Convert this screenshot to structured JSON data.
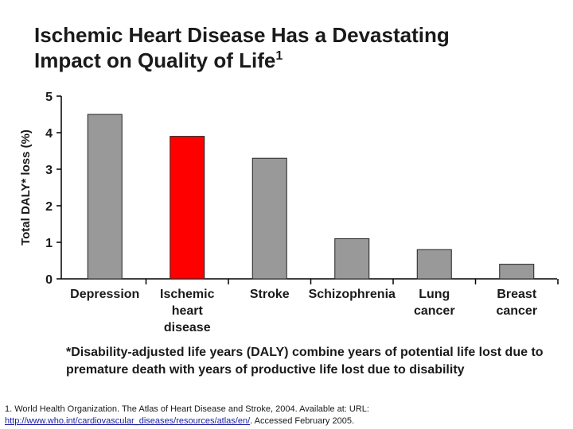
{
  "slide": {
    "title_line1": "Ischemic Heart Disease Has a Devastating",
    "title_line2": "Impact on Quality of Life",
    "title_superscript": "1",
    "footnote": "*Disability-adjusted life years (DALY) combine years of potential life lost due to premature death with years of productive life lost due to disability",
    "reference_text": "1. World Health Organization. The Atlas of Heart Disease and Stroke, 2004. Available at: URL:",
    "reference_link": "http://www.who.int/cardiovascular_diseases/resources/atlas/en/",
    "reference_suffix": ". Accessed February 2005."
  },
  "chart_data": {
    "type": "bar",
    "categories": [
      [
        "Depression"
      ],
      [
        "Ischemic",
        "heart",
        "disease"
      ],
      [
        "Stroke"
      ],
      [
        "Schizophrenia"
      ],
      [
        "Lung",
        "cancer"
      ],
      [
        "Breast",
        "cancer"
      ]
    ],
    "values": [
      4.5,
      3.9,
      3.3,
      1.1,
      0.8,
      0.4
    ],
    "colors": [
      "#999999",
      "#ff0000",
      "#999999",
      "#999999",
      "#999999",
      "#999999"
    ],
    "highlight_color": "#ff0000",
    "bar_color": "#999999",
    "ylabel": "Total DALY* loss (%)",
    "ylim": [
      0,
      5
    ],
    "yticks": [
      "0",
      "1",
      "2",
      "3",
      "4",
      "5"
    ],
    "grid": false
  }
}
